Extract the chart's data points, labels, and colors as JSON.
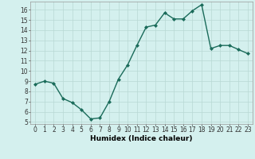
{
  "x": [
    0,
    1,
    2,
    3,
    4,
    5,
    6,
    7,
    8,
    9,
    10,
    11,
    12,
    13,
    14,
    15,
    16,
    17,
    18,
    19,
    20,
    21,
    22,
    23
  ],
  "y": [
    8.7,
    9.0,
    8.8,
    7.3,
    6.9,
    6.2,
    5.3,
    5.4,
    7.0,
    9.2,
    10.6,
    12.5,
    14.3,
    14.5,
    15.7,
    15.1,
    15.1,
    15.9,
    16.5,
    12.2,
    12.5,
    12.5,
    12.1,
    11.7
  ],
  "line_color": "#1a6b5a",
  "marker": "D",
  "marker_size": 2,
  "background_color": "#d4f0ee",
  "grid_color": "#b8d8d4",
  "xlabel": "Humidex (Indice chaleur)",
  "xlim": [
    -0.5,
    23.5
  ],
  "ylim": [
    4.8,
    16.8
  ],
  "yticks": [
    5,
    6,
    7,
    8,
    9,
    10,
    11,
    12,
    13,
    14,
    15,
    16
  ],
  "xticks": [
    0,
    1,
    2,
    3,
    4,
    5,
    6,
    7,
    8,
    9,
    10,
    11,
    12,
    13,
    14,
    15,
    16,
    17,
    18,
    19,
    20,
    21,
    22,
    23
  ],
  "tick_fontsize": 5.5,
  "xlabel_fontsize": 6.5,
  "linewidth": 1.0
}
